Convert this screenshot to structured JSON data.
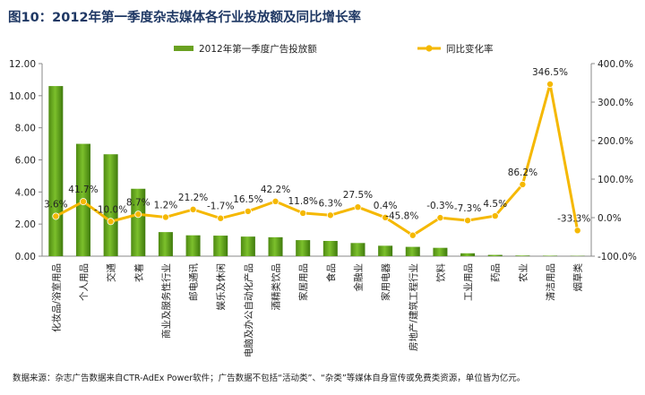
{
  "header": {
    "title": "图10：2012年第一季度杂志媒体各行业投放额及同比增长率"
  },
  "footer": {
    "note": "数据来源：杂志广告数据来自CTR-AdEx Power软件；广告数据不包括“活动类”、“杂类”等媒体自身宣传或免费类资源，单位皆为亿元。"
  },
  "chart_data": {
    "type": "bar+line",
    "title": "图10：2012年第一季度杂志媒体各行业投放额及同比增长率",
    "categories": [
      "化妆品/浴室用品",
      "个人用品",
      "交通",
      "衣着",
      "商业及服务性行业",
      "邮电通讯",
      "娱乐及休闲",
      "电脑及办公自动化产品",
      "酒精类饮品",
      "家居用品",
      "食品",
      "金融业",
      "家用电器",
      "房地产/建筑工程行业",
      "饮料",
      "工业用品",
      "药品",
      "农业",
      "清洁用品",
      "烟草类"
    ],
    "series": [
      {
        "name": "2012年第一季度广告投放额",
        "type": "bar",
        "axis": "left",
        "color": "#6aa121",
        "values": [
          10.6,
          7.0,
          6.35,
          4.2,
          1.5,
          1.3,
          1.28,
          1.22,
          1.18,
          1.0,
          0.95,
          0.82,
          0.65,
          0.58,
          0.52,
          0.18,
          0.08,
          0.04,
          0.03,
          0.02
        ]
      },
      {
        "name": "同比变化率",
        "type": "line",
        "axis": "right",
        "color": "#f5b800",
        "unit": "%",
        "values": [
          3.6,
          41.7,
          -10.0,
          8.7,
          1.2,
          21.2,
          -1.7,
          16.5,
          42.2,
          11.8,
          6.3,
          27.5,
          0.4,
          -45.8,
          -0.3,
          -7.3,
          4.5,
          86.2,
          346.5,
          -33.3
        ],
        "labels": [
          "3.6%",
          "41.7%",
          "-10.0%",
          "8.7%",
          "1.2%",
          "21.2%",
          "-1.7%",
          "16.5%",
          "42.2%",
          "11.8%",
          "6.3%",
          "27.5%",
          "0.4%",
          "-45.8%",
          "-0.3%",
          "-7.3%",
          "4.5%",
          "86.2%",
          "346.5%",
          "-33.3%"
        ]
      }
    ],
    "y_left": {
      "min": 0,
      "max": 12,
      "ticks": [
        "0.00",
        "2.00",
        "4.00",
        "6.00",
        "8.00",
        "10.00",
        "12.00"
      ],
      "tick_values": [
        0,
        2,
        4,
        6,
        8,
        10,
        12
      ]
    },
    "y_right": {
      "min": -100,
      "max": 400,
      "ticks": [
        "-100.0%",
        "0.0%",
        "100.0%",
        "200.0%",
        "300.0%",
        "400.0%"
      ],
      "tick_values": [
        -100,
        0,
        100,
        200,
        300,
        400
      ]
    },
    "legend_position": "top"
  }
}
